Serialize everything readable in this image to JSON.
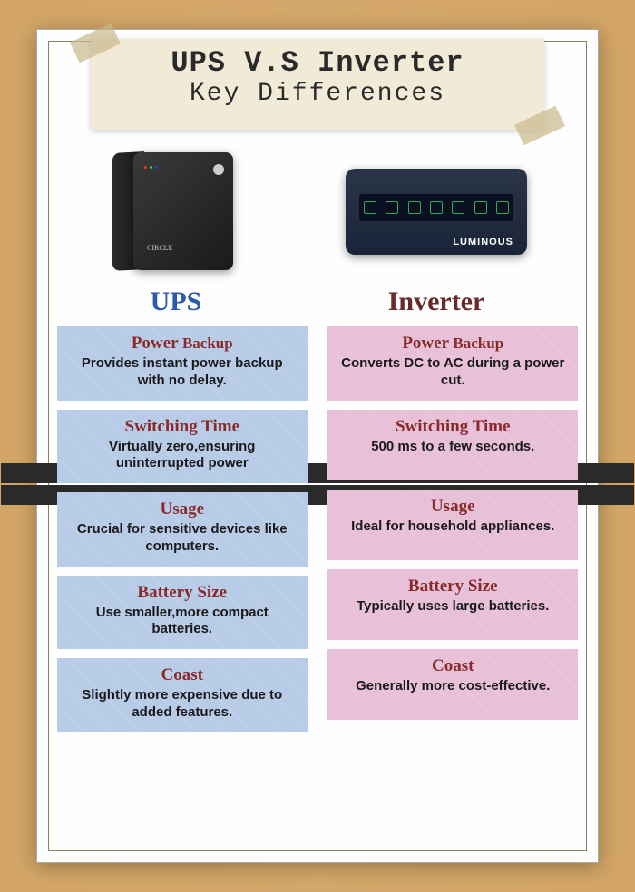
{
  "title": {
    "main": "UPS V.S Inverter",
    "sub": "Key Differences"
  },
  "headers": {
    "ups": "UPS",
    "inverter": "Inverter"
  },
  "inverter_brand": "LUMINOUS",
  "ups_brand": "CIRCLE",
  "ups_cards": [
    {
      "title": "Power",
      "title2": "Backup",
      "text": "Provides instant power backup with no delay."
    },
    {
      "title": "Switching Time",
      "text": "Virtually zero,ensuring uninterrupted power"
    },
    {
      "title": "Usage",
      "text": "Crucial for sensitive devices like computers."
    },
    {
      "title": "Battery Size",
      "text": "Use smaller,more compact batteries."
    },
    {
      "title": "Coast",
      "text": "Slightly more expensive due to added features."
    }
  ],
  "inv_cards": [
    {
      "title": "Power",
      "title2": "Backup",
      "text": "Converts DC to AC during a power cut."
    },
    {
      "title": "Switching Time",
      "text": "500 ms to a few seconds."
    },
    {
      "title": "Usage",
      "text": "Ideal for household appliances."
    },
    {
      "title": "Battery Size",
      "text": "Typically uses large batteries."
    },
    {
      "title": "Coast",
      "text": "Generally more cost-effective."
    }
  ],
  "colors": {
    "ups_header": "#2a5aa8",
    "inv_header": "#6a2a2a",
    "ups_card": "#b8cce8",
    "inv_card": "#e8c0d8",
    "card_title": "#8a2a2a"
  }
}
